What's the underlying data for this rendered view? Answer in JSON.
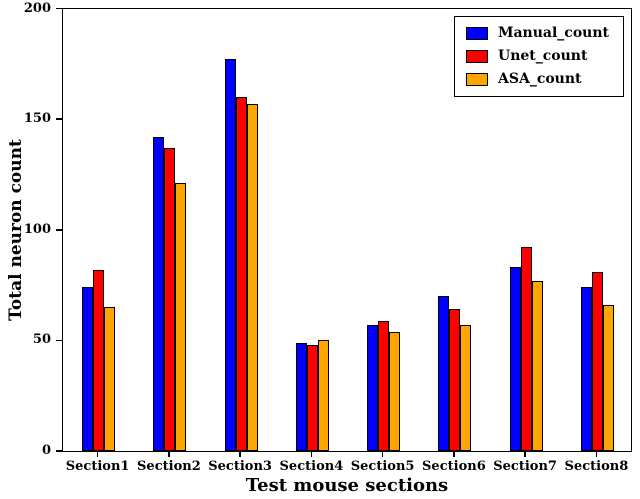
{
  "chart_data": {
    "type": "bar",
    "title": "",
    "xlabel": "Test mouse sections",
    "ylabel": "Total neuron count",
    "categories": [
      "Section1",
      "Section2",
      "Section3",
      "Section4",
      "Section5",
      "Section6",
      "Section7",
      "Section8"
    ],
    "series": [
      {
        "name": "Manual_count",
        "color": "#0000ff",
        "values": [
          74,
          142,
          177,
          49,
          57,
          70,
          83,
          74
        ]
      },
      {
        "name": "Unet_count",
        "color": "#ff0000",
        "values": [
          82,
          137,
          160,
          48,
          59,
          64,
          92,
          81
        ]
      },
      {
        "name": "ASA_count",
        "color": "#ffa500",
        "values": [
          65,
          121,
          157,
          50,
          54,
          57,
          77,
          66
        ]
      }
    ],
    "ylim": [
      0,
      200
    ],
    "yticks": [
      0,
      50,
      100,
      150,
      200
    ],
    "legend_position": "upper right",
    "grid": false,
    "bar_edge_color": "#000000",
    "axis_color": "#000000",
    "background_color": "#ffffff"
  }
}
